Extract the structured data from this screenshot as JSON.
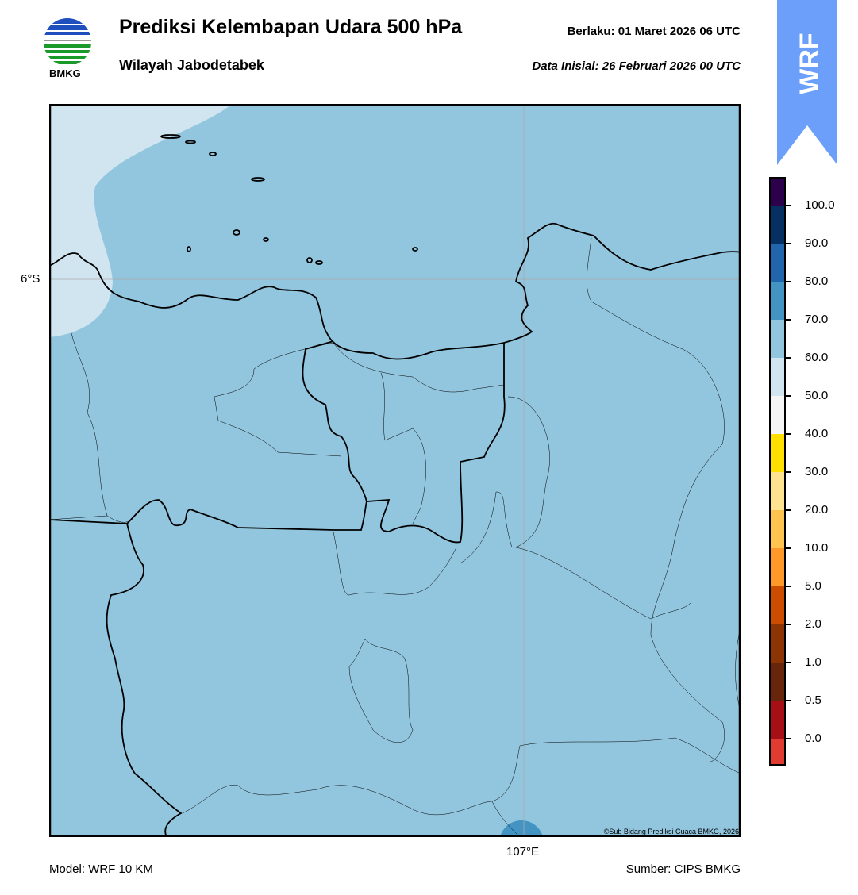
{
  "header": {
    "title": "Prediksi Kelembapan Udara 500 hPa",
    "subtitle": "Wilayah Jabodetabek",
    "valid": "Berlaku:  01 Maret 2026 06 UTC",
    "initial": "Data Inisial:  26 Februari 2026 00 UTC",
    "logo_text": "BMKG",
    "model_badge": "WRF"
  },
  "map": {
    "lat_label": "6°S",
    "lon_label": "107°E",
    "copyright": "©Sub Bidang Prediksi Cuaca BMKG, 2026",
    "field_colors": {
      "dominant": "#92c5de",
      "northwest": "#d1e5f0",
      "south_spot": "#4393c3"
    }
  },
  "colorbar": {
    "labels": [
      "100.0",
      "90.0",
      "80.0",
      "70.0",
      "60.0",
      "50.0",
      "40.0",
      "30.0",
      "20.0",
      "10.0",
      "5.0",
      "2.0",
      "1.0",
      "0.5",
      "0.0"
    ],
    "colors": [
      "#2d004b",
      "#053061",
      "#2166ac",
      "#4393c3",
      "#92c5de",
      "#d1e5f0",
      "#f5f5f5",
      "#ffe000",
      "#fee391",
      "#fec44f",
      "#fe9929",
      "#cc4c02",
      "#8c3404",
      "#67260c",
      "#a50f15",
      "#e03c31"
    ]
  },
  "footer": {
    "model": "Model: WRF 10 KM",
    "source": "Sumber: CIPS BMKG"
  }
}
